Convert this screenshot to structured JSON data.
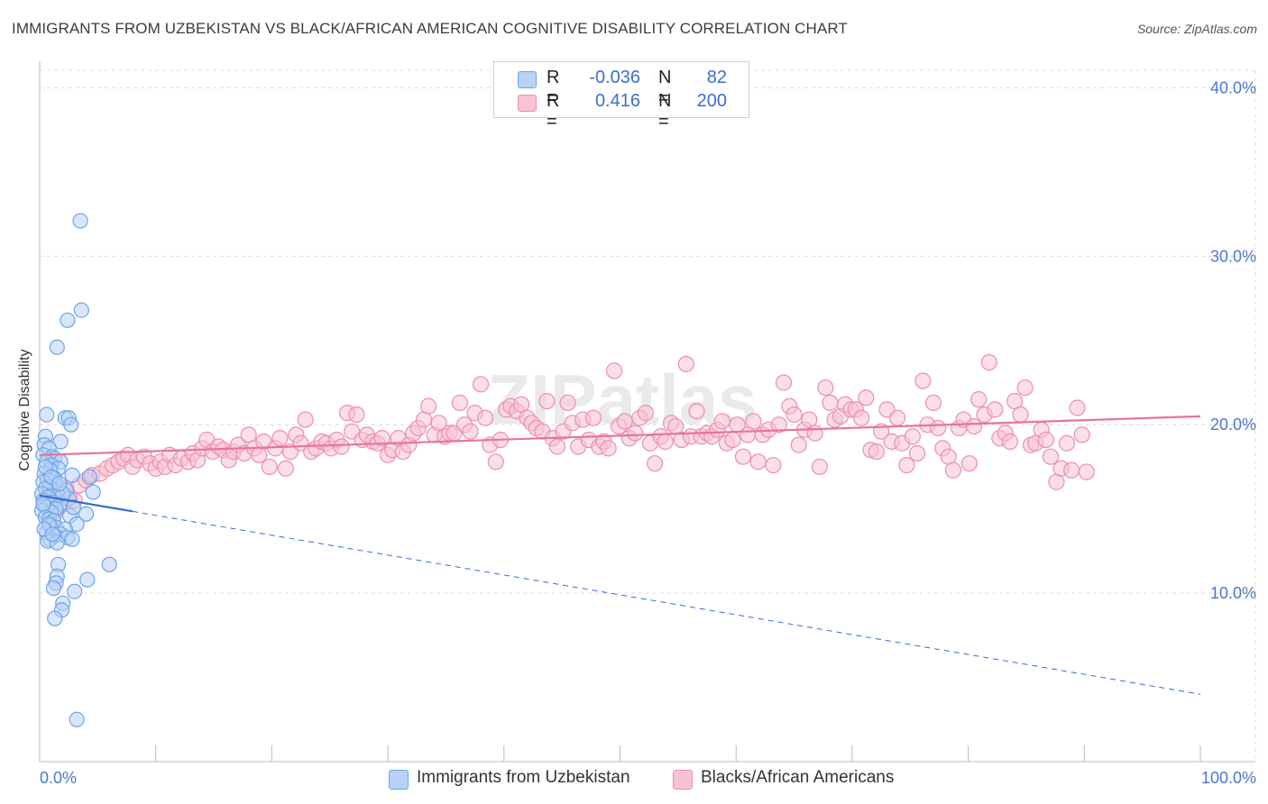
{
  "title": "IMMIGRANTS FROM UZBEKISTAN VS BLACK/AFRICAN AMERICAN COGNITIVE DISABILITY CORRELATION CHART",
  "source": "Source: ZipAtlas.com",
  "colors": {
    "blue": "#6fa3e8",
    "blue_fill": "#b7d2f6",
    "blue_line": "#2f6fd1",
    "pink": "#ec8fae",
    "pink_fill": "#f7c3d4",
    "pink_line": "#e8739a",
    "tick_text": "#4a78c8",
    "grid": "#dcdcdc"
  },
  "legend": {
    "rows": [
      {
        "label_r": "R =",
        "r_value": "-0.036",
        "label_n": "N =",
        "n_value": "82"
      },
      {
        "label_r": "R =",
        "r_value": "0.416",
        "label_n": "N =",
        "n_value": "200"
      }
    ]
  },
  "bottom_legend": [
    {
      "label": "Immigrants from Uzbekistan"
    },
    {
      "label": "Blacks/African Americans"
    }
  ],
  "chart_data": {
    "type": "scatter",
    "title": "IMMIGRANTS FROM UZBEKISTAN VS BLACK/AFRICAN AMERICAN COGNITIVE DISABILITY CORRELATION CHART",
    "xlabel": "",
    "ylabel": "Cognitive Disability",
    "xlim": [
      0,
      100
    ],
    "ylim": [
      0,
      42
    ],
    "x_tick_labels": [
      "0.0%",
      "100.0%"
    ],
    "y_ticks": [
      10,
      20,
      30,
      40
    ],
    "y_tick_labels": [
      "10.0%",
      "20.0%",
      "30.0%",
      "40.0%"
    ],
    "grid": true,
    "watermark": "ZIPatlas",
    "series": [
      {
        "name": "Immigrants from Uzbekistan",
        "r": -0.036,
        "n": 82,
        "trend": {
          "x0": 0,
          "y0": 15.8,
          "x1": 100,
          "y1": 4.0,
          "solid_until": 8
        },
        "points": [
          [
            3.5,
            32.1
          ],
          [
            3.6,
            26.8
          ],
          [
            2.4,
            26.2
          ],
          [
            1.5,
            24.6
          ],
          [
            0.6,
            20.6
          ],
          [
            2.2,
            20.4
          ],
          [
            2.5,
            20.4
          ],
          [
            2.7,
            20.0
          ],
          [
            0.5,
            19.3
          ],
          [
            1.8,
            19.0
          ],
          [
            0.4,
            18.8
          ],
          [
            0.8,
            18.6
          ],
          [
            0.3,
            18.2
          ],
          [
            1.1,
            18.1
          ],
          [
            1.3,
            18.0
          ],
          [
            0.6,
            17.8
          ],
          [
            1.8,
            17.8
          ],
          [
            1.0,
            17.6
          ],
          [
            1.6,
            17.4
          ],
          [
            0.9,
            17.3
          ],
          [
            0.4,
            17.1
          ],
          [
            2.8,
            17.0
          ],
          [
            4.3,
            16.9
          ],
          [
            1.3,
            16.8
          ],
          [
            0.7,
            16.7
          ],
          [
            0.3,
            16.6
          ],
          [
            1.5,
            16.4
          ],
          [
            0.9,
            16.3
          ],
          [
            0.5,
            16.2
          ],
          [
            2.3,
            16.1
          ],
          [
            4.6,
            16.0
          ],
          [
            0.2,
            15.9
          ],
          [
            1.1,
            15.8
          ],
          [
            1.6,
            15.8
          ],
          [
            0.7,
            15.7
          ],
          [
            2.5,
            15.6
          ],
          [
            0.3,
            15.5
          ],
          [
            1.2,
            15.4
          ],
          [
            0.9,
            15.3
          ],
          [
            1.8,
            15.3
          ],
          [
            0.4,
            15.2
          ],
          [
            0.6,
            15.1
          ],
          [
            1.4,
            15.0
          ],
          [
            0.2,
            14.9
          ],
          [
            1.0,
            14.8
          ],
          [
            4.0,
            14.7
          ],
          [
            2.6,
            14.6
          ],
          [
            0.5,
            14.5
          ],
          [
            0.8,
            14.4
          ],
          [
            1.2,
            14.3
          ],
          [
            3.2,
            14.1
          ],
          [
            0.9,
            14.0
          ],
          [
            1.4,
            13.9
          ],
          [
            2.2,
            13.8
          ],
          [
            0.6,
            13.6
          ],
          [
            1.8,
            13.5
          ],
          [
            1.3,
            13.4
          ],
          [
            2.4,
            13.3
          ],
          [
            0.9,
            13.2
          ],
          [
            2.8,
            13.2
          ],
          [
            0.7,
            13.1
          ],
          [
            1.5,
            13.0
          ],
          [
            6.0,
            11.7
          ],
          [
            1.6,
            11.7
          ],
          [
            1.5,
            11.0
          ],
          [
            4.1,
            10.8
          ],
          [
            1.4,
            10.6
          ],
          [
            1.2,
            10.3
          ],
          [
            3.0,
            10.1
          ],
          [
            2.0,
            9.4
          ],
          [
            1.9,
            9.0
          ],
          [
            1.3,
            8.5
          ],
          [
            3.2,
            2.5
          ],
          [
            0.5,
            17.5
          ],
          [
            1.0,
            16.9
          ],
          [
            0.3,
            15.3
          ],
          [
            2.0,
            15.9
          ],
          [
            0.8,
            14.1
          ],
          [
            1.7,
            16.5
          ],
          [
            0.4,
            13.8
          ],
          [
            1.1,
            13.5
          ],
          [
            2.9,
            15.1
          ]
        ]
      },
      {
        "name": "Blacks/African Americans",
        "r": 0.416,
        "n": 200,
        "trend": {
          "x0": 0,
          "y0": 18.2,
          "x1": 100,
          "y1": 20.5
        },
        "points": [
          [
            1.2,
            14.6
          ],
          [
            1.7,
            15.1
          ],
          [
            2.1,
            15.4
          ],
          [
            2.6,
            15.7
          ],
          [
            0.8,
            15.9
          ],
          [
            1.5,
            16.0
          ],
          [
            3.0,
            15.5
          ],
          [
            2.3,
            16.2
          ],
          [
            3.4,
            16.4
          ],
          [
            4.0,
            16.7
          ],
          [
            1.1,
            16.8
          ],
          [
            4.5,
            17.0
          ],
          [
            5.2,
            17.1
          ],
          [
            5.8,
            17.4
          ],
          [
            6.3,
            17.6
          ],
          [
            6.8,
            17.8
          ],
          [
            7.2,
            18.0
          ],
          [
            7.6,
            18.2
          ],
          [
            8.0,
            17.5
          ],
          [
            8.4,
            17.9
          ],
          [
            9.0,
            18.1
          ],
          [
            9.5,
            17.7
          ],
          [
            10.0,
            17.4
          ],
          [
            10.4,
            17.8
          ],
          [
            10.8,
            17.5
          ],
          [
            11.2,
            18.2
          ],
          [
            11.7,
            17.6
          ],
          [
            12.2,
            18.0
          ],
          [
            12.8,
            17.8
          ],
          [
            13.2,
            18.3
          ],
          [
            13.6,
            17.9
          ],
          [
            14.0,
            18.6
          ],
          [
            14.4,
            19.1
          ],
          [
            14.9,
            18.4
          ],
          [
            15.4,
            18.7
          ],
          [
            15.8,
            18.5
          ],
          [
            16.3,
            17.9
          ],
          [
            16.7,
            18.4
          ],
          [
            17.1,
            18.8
          ],
          [
            17.6,
            18.3
          ],
          [
            18.0,
            19.4
          ],
          [
            18.5,
            18.6
          ],
          [
            18.9,
            18.2
          ],
          [
            19.3,
            19.0
          ],
          [
            19.8,
            17.5
          ],
          [
            20.3,
            18.6
          ],
          [
            20.7,
            19.2
          ],
          [
            21.2,
            17.4
          ],
          [
            21.6,
            18.4
          ],
          [
            22.1,
            19.4
          ],
          [
            22.5,
            18.9
          ],
          [
            22.9,
            20.3
          ],
          [
            23.4,
            18.4
          ],
          [
            23.8,
            18.6
          ],
          [
            24.3,
            19.0
          ],
          [
            24.7,
            18.9
          ],
          [
            25.1,
            18.6
          ],
          [
            25.6,
            19.1
          ],
          [
            26.0,
            18.7
          ],
          [
            26.5,
            20.7
          ],
          [
            26.9,
            19.6
          ],
          [
            27.3,
            20.6
          ],
          [
            27.8,
            19.1
          ],
          [
            28.2,
            19.4
          ],
          [
            28.7,
            19.0
          ],
          [
            29.1,
            18.9
          ],
          [
            29.5,
            19.2
          ],
          [
            30.0,
            18.2
          ],
          [
            30.4,
            18.5
          ],
          [
            30.9,
            19.2
          ],
          [
            31.3,
            18.4
          ],
          [
            31.8,
            18.8
          ],
          [
            32.2,
            19.5
          ],
          [
            32.6,
            19.8
          ],
          [
            33.1,
            20.3
          ],
          [
            33.5,
            21.1
          ],
          [
            34.0,
            19.4
          ],
          [
            34.4,
            20.1
          ],
          [
            34.9,
            19.3
          ],
          [
            35.3,
            19.5
          ],
          [
            35.7,
            19.5
          ],
          [
            36.2,
            21.3
          ],
          [
            36.6,
            20.0
          ],
          [
            37.1,
            19.6
          ],
          [
            37.5,
            20.7
          ],
          [
            38.0,
            22.4
          ],
          [
            38.4,
            20.4
          ],
          [
            38.8,
            18.8
          ],
          [
            39.3,
            17.8
          ],
          [
            39.7,
            19.1
          ],
          [
            40.2,
            20.9
          ],
          [
            40.6,
            21.1
          ],
          [
            41.1,
            20.8
          ],
          [
            41.5,
            21.2
          ],
          [
            42.0,
            20.4
          ],
          [
            42.4,
            20.1
          ],
          [
            42.8,
            19.8
          ],
          [
            43.3,
            19.6
          ],
          [
            43.7,
            21.4
          ],
          [
            44.2,
            19.2
          ],
          [
            44.6,
            18.7
          ],
          [
            45.1,
            19.6
          ],
          [
            45.5,
            21.3
          ],
          [
            45.9,
            20.1
          ],
          [
            46.4,
            18.7
          ],
          [
            46.8,
            20.3
          ],
          [
            47.3,
            19.1
          ],
          [
            47.7,
            20.4
          ],
          [
            48.2,
            18.7
          ],
          [
            48.6,
            19.0
          ],
          [
            49.0,
            18.6
          ],
          [
            49.5,
            23.2
          ],
          [
            49.9,
            19.9
          ],
          [
            50.4,
            20.2
          ],
          [
            50.8,
            19.2
          ],
          [
            51.3,
            19.5
          ],
          [
            51.7,
            20.4
          ],
          [
            52.2,
            20.7
          ],
          [
            52.6,
            18.9
          ],
          [
            53.0,
            17.7
          ],
          [
            53.5,
            19.3
          ],
          [
            53.9,
            19.0
          ],
          [
            54.4,
            20.1
          ],
          [
            54.8,
            19.9
          ],
          [
            55.3,
            19.1
          ],
          [
            55.7,
            23.6
          ],
          [
            56.1,
            19.3
          ],
          [
            56.6,
            20.8
          ],
          [
            57.0,
            19.3
          ],
          [
            57.5,
            19.5
          ],
          [
            57.9,
            19.3
          ],
          [
            58.4,
            19.7
          ],
          [
            58.8,
            20.2
          ],
          [
            59.2,
            18.9
          ],
          [
            59.7,
            19.1
          ],
          [
            60.1,
            20.0
          ],
          [
            60.6,
            18.1
          ],
          [
            61.0,
            19.4
          ],
          [
            61.5,
            20.2
          ],
          [
            61.9,
            17.8
          ],
          [
            62.3,
            19.4
          ],
          [
            62.8,
            19.7
          ],
          [
            63.2,
            17.6
          ],
          [
            63.7,
            20.0
          ],
          [
            64.1,
            22.5
          ],
          [
            64.6,
            21.1
          ],
          [
            65.0,
            20.6
          ],
          [
            65.4,
            18.8
          ],
          [
            65.9,
            19.7
          ],
          [
            66.3,
            20.3
          ],
          [
            66.8,
            19.5
          ],
          [
            67.2,
            17.5
          ],
          [
            67.7,
            22.2
          ],
          [
            68.1,
            21.3
          ],
          [
            68.5,
            20.3
          ],
          [
            69.0,
            20.5
          ],
          [
            69.4,
            21.2
          ],
          [
            69.9,
            20.9
          ],
          [
            70.3,
            20.9
          ],
          [
            70.8,
            20.4
          ],
          [
            71.2,
            21.6
          ],
          [
            71.6,
            18.5
          ],
          [
            72.1,
            18.4
          ],
          [
            72.5,
            19.6
          ],
          [
            73.0,
            20.9
          ],
          [
            73.4,
            19.0
          ],
          [
            73.9,
            20.4
          ],
          [
            74.3,
            18.9
          ],
          [
            74.7,
            17.6
          ],
          [
            75.2,
            19.3
          ],
          [
            75.6,
            18.3
          ],
          [
            76.1,
            22.6
          ],
          [
            76.5,
            20.0
          ],
          [
            77.0,
            21.3
          ],
          [
            77.4,
            19.8
          ],
          [
            77.8,
            18.6
          ],
          [
            78.3,
            18.1
          ],
          [
            78.7,
            17.3
          ],
          [
            79.2,
            19.8
          ],
          [
            79.6,
            20.3
          ],
          [
            80.1,
            17.7
          ],
          [
            80.5,
            19.9
          ],
          [
            80.9,
            21.5
          ],
          [
            81.4,
            20.6
          ],
          [
            81.8,
            23.7
          ],
          [
            82.3,
            20.9
          ],
          [
            82.7,
            19.2
          ],
          [
            83.2,
            19.5
          ],
          [
            83.6,
            19.0
          ],
          [
            84.0,
            21.4
          ],
          [
            84.5,
            20.6
          ],
          [
            84.9,
            22.2
          ],
          [
            85.4,
            18.8
          ],
          [
            85.8,
            18.9
          ],
          [
            86.3,
            19.7
          ],
          [
            86.7,
            19.1
          ],
          [
            87.1,
            18.1
          ],
          [
            87.6,
            16.6
          ],
          [
            88.0,
            17.4
          ],
          [
            88.5,
            18.9
          ],
          [
            88.9,
            17.3
          ],
          [
            89.4,
            21.0
          ],
          [
            89.8,
            19.4
          ],
          [
            90.2,
            17.2
          ]
        ]
      }
    ]
  }
}
